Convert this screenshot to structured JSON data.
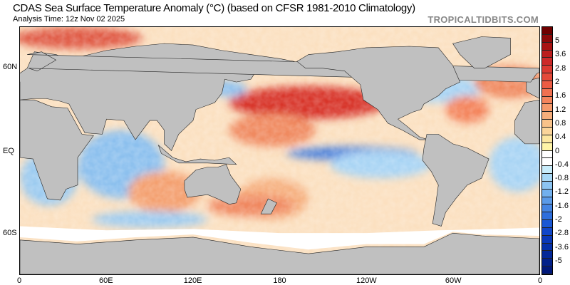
{
  "header": {
    "title": "CDAS Sea Surface Temperature Anomaly (°C) (based on CFSR 1981-2010 Climatology)",
    "analysis_time": "Analysis Time: 12z Nov 02 2025",
    "brand": "TROPICALTIDBITS.COM"
  },
  "axes": {
    "lat_labels": [
      "60N",
      "EQ",
      "60S"
    ],
    "lon_labels": [
      "0",
      "60E",
      "120E",
      "180",
      "120W",
      "60W",
      "0"
    ]
  },
  "colorbar": {
    "labels": [
      "5",
      "3.6",
      "2.8",
      "2",
      "1.6",
      "1.2",
      "0.8",
      "0.4",
      "0",
      "-0.4",
      "-0.8",
      "-1.2",
      "-1.6",
      "-2",
      "-2.8",
      "-3.6",
      "-5"
    ],
    "colors": [
      "#6e0000",
      "#8c0a0a",
      "#a81414",
      "#bb1e1e",
      "#cc2a2a",
      "#db3a32",
      "#e44a3a",
      "#ec5c44",
      "#f07050",
      "#f4845c",
      "#f59a6c",
      "#f6ae7c",
      "#f8c28a",
      "#fad49a",
      "#fce6a0",
      "#fff4a8",
      "#ffffff",
      "#ffffff",
      "#c8ecfa",
      "#a8d8f6",
      "#8cc4f2",
      "#72b0ee",
      "#5a9ae8",
      "#4484e2",
      "#2e6edc",
      "#1a58d4",
      "#1046c8",
      "#0a38b8",
      "#0630a8",
      "#042898",
      "#02208a",
      "#01187a"
    ],
    "ocean_colors": {
      "warm": "#e8604a",
      "hot": "#c82c28",
      "neutral": "#fbe7c8",
      "cool": "#9ccbf0",
      "cold": "#3a70d8",
      "land": "#c0c0c0",
      "ice": "#ffffff"
    }
  }
}
